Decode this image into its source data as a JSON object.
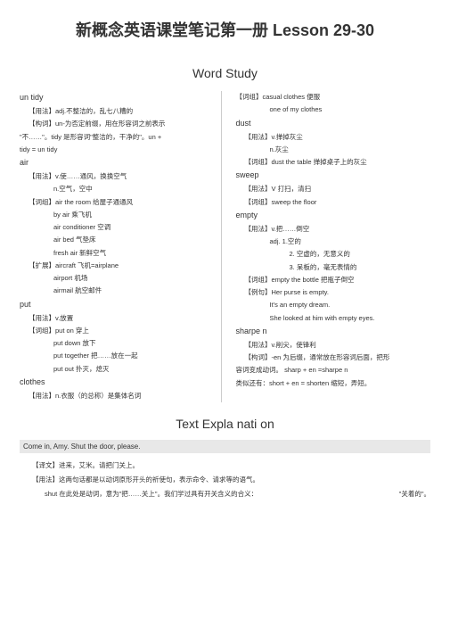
{
  "title": "新概念英语课堂笔记第一册 Lesson 29-30",
  "section1_heading": "Word Study",
  "section2_heading": "Text Expla nati on",
  "colors": {
    "background": "#ffffff",
    "text": "#333333",
    "divider": "#cccccc",
    "graybox": "#e8e8e8"
  },
  "left": {
    "w1": "un tidy",
    "w1_l1": "【用法】adj.不整洁的，乱七八糟的",
    "w1_l2": "【构词】un-为否定前缀，用在形容词之前表示",
    "w1_l3": "\"不……\"。tidy 是形容词\"整洁的，干净的\"。un +",
    "w1_l4": "tidy = un tidy",
    "w2": "air",
    "w2_l1": "【用法】v.使……通风，换换空气",
    "w2_l2": "n.空气，空中",
    "w2_l3": "【词组】air the room 给屋子通通风",
    "w2_l4": "by air 乘飞机",
    "w2_l5": "air conditioner 空调",
    "w2_l6": "air bed 气垫床",
    "w2_l7": "fresh air 新鲜空气",
    "w2_l8": "【扩展】aircraft 飞机=airplane",
    "w2_l9": "airport 机场",
    "w2_l10": "airmail 航空邮件",
    "w3": "put",
    "w3_l1": "【用法】v.放置",
    "w3_l2": "【词组】put on 穿上",
    "w3_l3": "put down 放下",
    "w3_l4": "put together 把……放在一起",
    "w3_l5": "put out 扑灭，熄灭",
    "w4": "clothes",
    "w4_l1": "【用法】n.衣服（的总称）是集体名词"
  },
  "right": {
    "r1_l1": "【词组】casual clothes 便服",
    "r1_l2": "one of my clothes",
    "w2": "dust",
    "w2_l1": "【用法】v.掸掉灰尘",
    "w2_l2": "n.灰尘",
    "w2_l3": "【词组】dust the table 掸掉桌子上的灰尘",
    "w3": "sweep",
    "w3_l1": "【用法】V 打扫，清扫",
    "w3_l2": "【词组】sweep the floor",
    "w4": "empty",
    "w4_l1": "【用法】v.把……倒空",
    "w4_l2": "adj. 1.空的",
    "w4_l3": "2.  空虚的，无意义的",
    "w4_l4": "3.  呆板的，毫无表情的",
    "w4_l5": "【词组】empty the bottle 把瓶子倒空",
    "w4_l6": "【例句】Her purse is empty.",
    "w4_l7": "It's an empty dream.",
    "w4_l8": "She looked at him with empty eyes.",
    "w5": "sharpe n",
    "w5_l1": "【用法】v.削尖，使锋利",
    "w5_l2": "【构词】-en 为后缀，通常放在形容词后面，把形",
    "w5_l3": "容词变成动词。 sharp + en =sharpe n",
    "w5_l4": "类似还有：short + en = shorten 缩短，弄短。"
  },
  "explain": {
    "gray": "Come in, Amy. Shut the door, please.",
    "l1": "【译文】进来，艾米。请把门关上。",
    "l2": "【用法】这两句话都是以动词原形开头的祈使句，表示命令、请求等的语气。",
    "l3_a": "shut 在此处是动词，意为\"把……关上\"。我们学过具有开关含义的合义：",
    "l3_b": "\"关着的\"。"
  }
}
